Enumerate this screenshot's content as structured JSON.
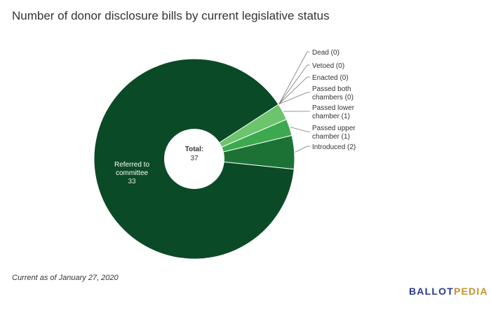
{
  "title": "Number of donor disclosure bills by current legislative status",
  "footnote": "Current as of January 27, 2020",
  "logo": {
    "part1": "BALLOT",
    "part2": "PEDIA"
  },
  "colors": {
    "brand_blue": "#2b3990",
    "brand_gold": "#c6922b"
  },
  "chart_data": {
    "type": "pie",
    "variant": "donut",
    "title": "Number of donor disclosure bills by current legislative status",
    "center_label": {
      "title": "Total:",
      "value": "37"
    },
    "total": 37,
    "slices": [
      {
        "label": [
          "Referred to",
          "committee"
        ],
        "value": 33,
        "value_label": "33",
        "color": "#0b4a26",
        "label_inside": true
      },
      {
        "label": [
          "Introduced (2)"
        ],
        "value": 2,
        "color": "#1c7235"
      },
      {
        "label": [
          "Passed upper",
          "chamber (1)"
        ],
        "value": 1,
        "color": "#3da94f"
      },
      {
        "label": [
          "Passed lower",
          "chamber (1)"
        ],
        "value": 1,
        "color": "#6cc46c"
      },
      {
        "label": [
          "Passed both",
          "chambers (0)"
        ],
        "value": 0,
        "color": "#8ed48a"
      },
      {
        "label": [
          "Enacted (0)"
        ],
        "value": 0,
        "color": "#a8dfa4"
      },
      {
        "label": [
          "Vetoed (0)"
        ],
        "value": 0,
        "color": "#c2e9bf"
      },
      {
        "label": [
          "Dead (0)"
        ],
        "value": 0,
        "color": "#dbf2d8"
      }
    ]
  }
}
